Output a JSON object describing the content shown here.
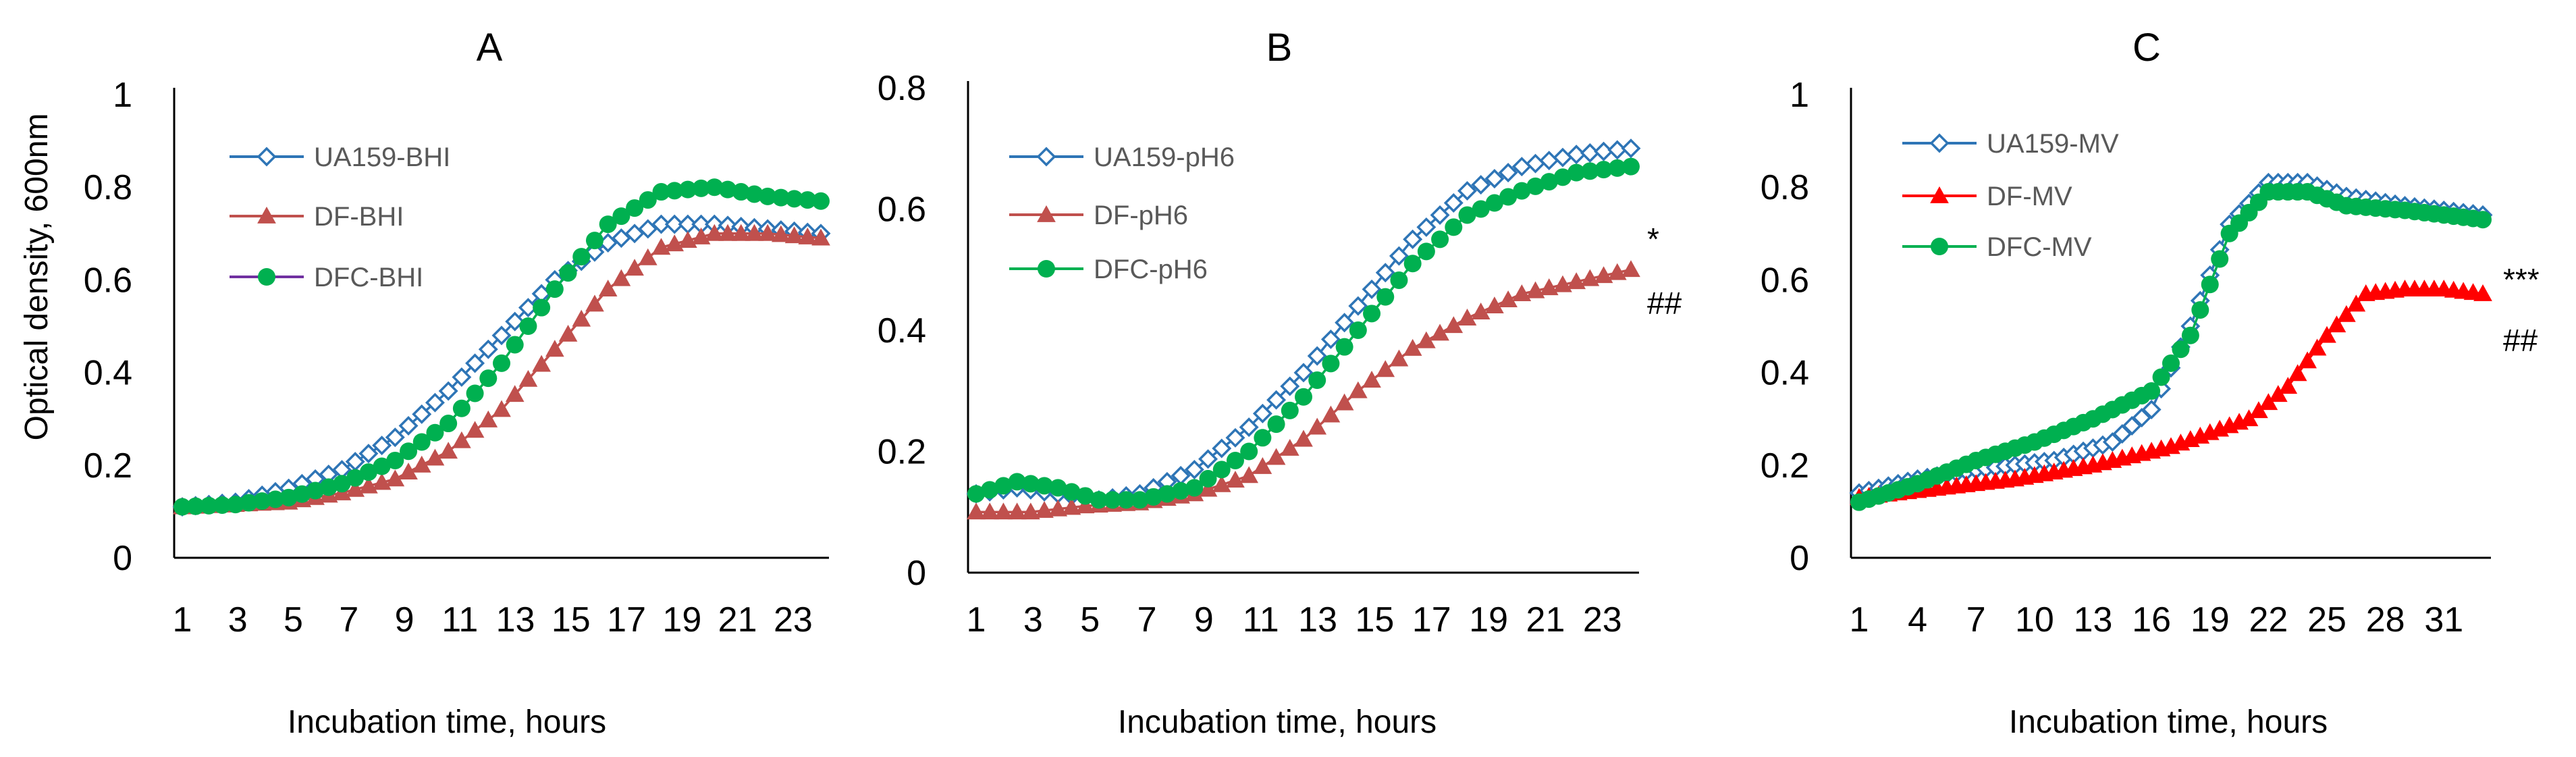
{
  "figure": {
    "ylabel": "Optical density, 600nm"
  },
  "chart_data": [
    {
      "type": "line",
      "title": "A",
      "xlabel": "Incubation time, hours",
      "ylim": [
        0,
        1
      ],
      "yticks": [
        "0",
        "0.2",
        "0.4",
        "0.6",
        "0.8",
        "1"
      ],
      "xticks": [
        "1",
        "3",
        "5",
        "7",
        "9",
        "11",
        "13",
        "15",
        "17",
        "19",
        "21",
        "23"
      ],
      "x_range": [
        1,
        24
      ],
      "series": [
        {
          "name": "UA159-BHI",
          "color": "#2E75B6",
          "marker": "diamond",
          "keyframes": [
            [
              0,
              0.11
            ],
            [
              4,
              0.12
            ],
            [
              8,
              0.15
            ],
            [
              12,
              0.19
            ],
            [
              16,
              0.26
            ],
            [
              20,
              0.36
            ],
            [
              24,
              0.48
            ],
            [
              28,
              0.6
            ],
            [
              32,
              0.68
            ],
            [
              36,
              0.72
            ],
            [
              40,
              0.72
            ],
            [
              44,
              0.71
            ],
            [
              48,
              0.7
            ]
          ]
        },
        {
          "name": "DF-BHI",
          "color": "#C0504D",
          "marker": "triangle",
          "keyframes": [
            [
              0,
              0.11
            ],
            [
              4,
              0.115
            ],
            [
              8,
              0.12
            ],
            [
              12,
              0.14
            ],
            [
              16,
              0.17
            ],
            [
              20,
              0.23
            ],
            [
              24,
              0.32
            ],
            [
              28,
              0.45
            ],
            [
              32,
              0.58
            ],
            [
              36,
              0.67
            ],
            [
              40,
              0.7
            ],
            [
              44,
              0.7
            ],
            [
              48,
              0.69
            ]
          ]
        },
        {
          "name": "DFC-BHI",
          "color": "#00B050",
          "marker": "circle",
          "legend_line_color": "#7030A0",
          "keyframes": [
            [
              0,
              0.11
            ],
            [
              4,
              0.115
            ],
            [
              8,
              0.13
            ],
            [
              12,
              0.16
            ],
            [
              16,
              0.21
            ],
            [
              20,
              0.29
            ],
            [
              24,
              0.42
            ],
            [
              28,
              0.58
            ],
            [
              32,
              0.72
            ],
            [
              36,
              0.79
            ],
            [
              40,
              0.8
            ],
            [
              44,
              0.78
            ],
            [
              48,
              0.77
            ]
          ]
        }
      ]
    },
    {
      "type": "line",
      "title": "B",
      "xlabel": "Incubation time, hours",
      "ylim": [
        0,
        0.8
      ],
      "yticks": [
        "0",
        "0.2",
        "0.4",
        "0.6",
        "0.8"
      ],
      "xticks": [
        "1",
        "3",
        "5",
        "7",
        "9",
        "11",
        "13",
        "15",
        "17",
        "19",
        "21",
        "23"
      ],
      "x_range": [
        1,
        24
      ],
      "annotations": [
        "*",
        "##"
      ],
      "series": [
        {
          "name": "UA159-pH6",
          "color": "#2E75B6",
          "marker": "diamond",
          "keyframes": [
            [
              0,
              0.13
            ],
            [
              3,
              0.14
            ],
            [
              6,
              0.13
            ],
            [
              9,
              0.12
            ],
            [
              12,
              0.13
            ],
            [
              16,
              0.17
            ],
            [
              20,
              0.24
            ],
            [
              24,
              0.33
            ],
            [
              28,
              0.44
            ],
            [
              32,
              0.55
            ],
            [
              36,
              0.63
            ],
            [
              40,
              0.67
            ],
            [
              44,
              0.69
            ],
            [
              48,
              0.7
            ]
          ]
        },
        {
          "name": "DF-pH6",
          "color": "#C0504D",
          "marker": "triangle",
          "keyframes": [
            [
              0,
              0.1
            ],
            [
              4,
              0.1
            ],
            [
              8,
              0.11
            ],
            [
              12,
              0.115
            ],
            [
              16,
              0.13
            ],
            [
              20,
              0.16
            ],
            [
              24,
              0.22
            ],
            [
              28,
              0.3
            ],
            [
              32,
              0.37
            ],
            [
              36,
              0.42
            ],
            [
              40,
              0.46
            ],
            [
              44,
              0.48
            ],
            [
              48,
              0.5
            ]
          ]
        },
        {
          "name": "DFC-pH6",
          "color": "#00B050",
          "marker": "circle",
          "keyframes": [
            [
              0,
              0.13
            ],
            [
              3,
              0.15
            ],
            [
              6,
              0.14
            ],
            [
              9,
              0.12
            ],
            [
              12,
              0.12
            ],
            [
              16,
              0.14
            ],
            [
              20,
              0.2
            ],
            [
              24,
              0.29
            ],
            [
              28,
              0.4
            ],
            [
              32,
              0.51
            ],
            [
              36,
              0.59
            ],
            [
              40,
              0.63
            ],
            [
              44,
              0.66
            ],
            [
              48,
              0.67
            ]
          ]
        }
      ]
    },
    {
      "type": "line",
      "title": "C",
      "xlabel": "Incubation time, hours",
      "ylim": [
        0,
        1
      ],
      "yticks": [
        "0",
        "0.2",
        "0.4",
        "0.6",
        "0.8",
        "1"
      ],
      "xticks": [
        "1",
        "4",
        "7",
        "10",
        "13",
        "16",
        "19",
        "22",
        "25",
        "28",
        "31"
      ],
      "x_range": [
        1,
        33
      ],
      "annotations": [
        "***",
        "##"
      ],
      "series": [
        {
          "name": "UA159-MV",
          "color": "#2E75B6",
          "marker": "diamond",
          "keyframes": [
            [
              0,
              0.14
            ],
            [
              6,
              0.17
            ],
            [
              12,
              0.19
            ],
            [
              20,
              0.21
            ],
            [
              26,
              0.25
            ],
            [
              30,
              0.32
            ],
            [
              34,
              0.5
            ],
            [
              38,
              0.72
            ],
            [
              42,
              0.81
            ],
            [
              46,
              0.81
            ],
            [
              50,
              0.78
            ],
            [
              56,
              0.76
            ],
            [
              64,
              0.74
            ]
          ]
        },
        {
          "name": "DF-MV",
          "color": "#FF0000",
          "marker": "triangle",
          "keyframes": [
            [
              0,
              0.13
            ],
            [
              8,
              0.15
            ],
            [
              16,
              0.17
            ],
            [
              24,
              0.2
            ],
            [
              32,
              0.24
            ],
            [
              40,
              0.3
            ],
            [
              44,
              0.37
            ],
            [
              48,
              0.48
            ],
            [
              52,
              0.57
            ],
            [
              56,
              0.58
            ],
            [
              60,
              0.58
            ],
            [
              64,
              0.57
            ]
          ]
        },
        {
          "name": "DFC-MV",
          "color": "#00B050",
          "marker": "circle",
          "keyframes": [
            [
              0,
              0.12
            ],
            [
              6,
              0.16
            ],
            [
              12,
              0.21
            ],
            [
              18,
              0.25
            ],
            [
              24,
              0.3
            ],
            [
              30,
              0.36
            ],
            [
              34,
              0.48
            ],
            [
              38,
              0.7
            ],
            [
              42,
              0.79
            ],
            [
              46,
              0.79
            ],
            [
              50,
              0.76
            ],
            [
              56,
              0.75
            ],
            [
              64,
              0.73
            ]
          ]
        }
      ]
    }
  ]
}
